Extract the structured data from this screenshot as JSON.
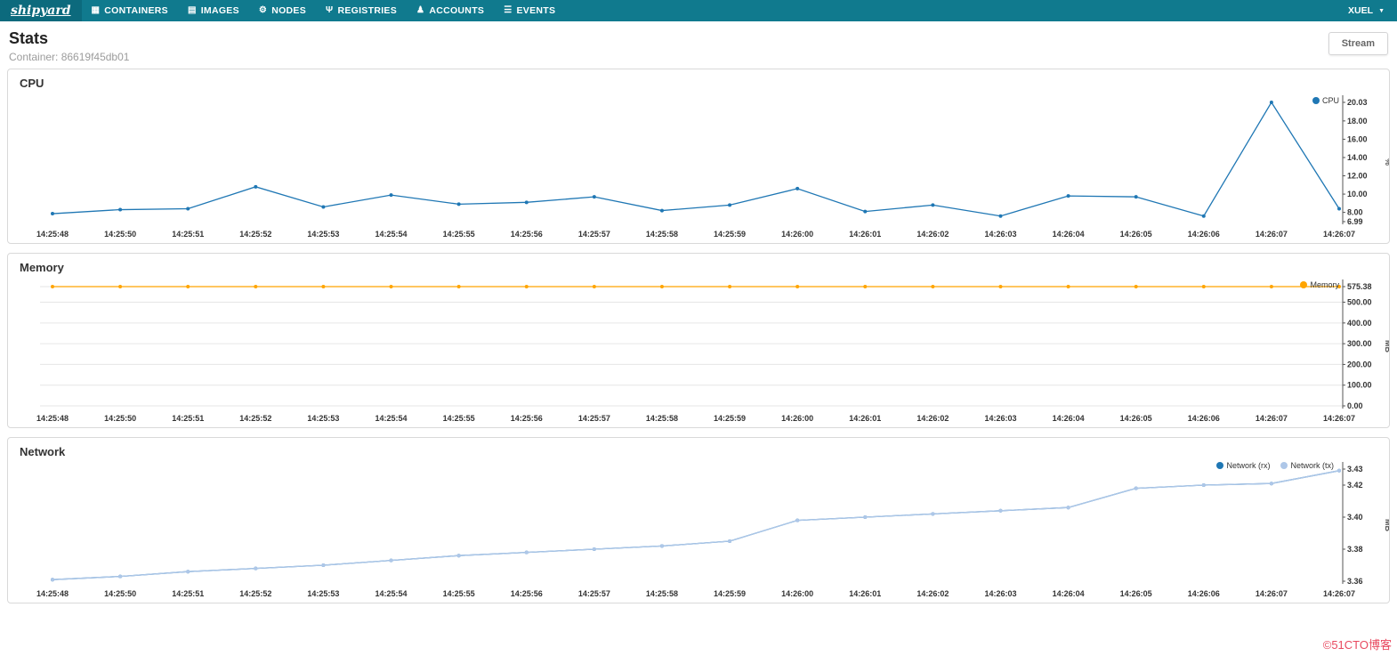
{
  "navbar": {
    "logo": "shipyard",
    "items": [
      {
        "label": "CONTAINERS",
        "icon": "containers-icon",
        "glyph": "▦"
      },
      {
        "label": "IMAGES",
        "icon": "images-icon",
        "glyph": "▤"
      },
      {
        "label": "NODES",
        "icon": "nodes-icon",
        "glyph": "⚙"
      },
      {
        "label": "REGISTRIES",
        "icon": "registries-icon",
        "glyph": "Ψ"
      },
      {
        "label": "ACCOUNTS",
        "icon": "accounts-icon",
        "glyph": "♟"
      },
      {
        "label": "EVENTS",
        "icon": "events-icon",
        "glyph": "☰"
      }
    ],
    "user": "XUEL"
  },
  "header": {
    "title": "Stats",
    "subtitle": "Container: 86619f45db01",
    "stream_button": "Stream"
  },
  "watermark": "©51CTO博客",
  "colors": {
    "navbar": "#107a8e",
    "cpu_line": "#1f77b4",
    "memory_line": "#ffa500",
    "network_rx": "#1f77b4",
    "network_tx": "#aec7e8",
    "watermark": "#e8495f"
  },
  "chart_data": [
    {
      "type": "line",
      "title": "CPU",
      "ylabel": "%",
      "ylim": [
        6.99,
        20.03
      ],
      "yticks": [
        6.99,
        8,
        10,
        12,
        14,
        16,
        18,
        20.03
      ],
      "ytick_labels": [
        "6.99",
        "8.00",
        "10.00",
        "12.00",
        "14.00",
        "16.00",
        "18.00",
        "20.03"
      ],
      "grid": false,
      "legend_position": "top-right",
      "categories": [
        "14:25:48",
        "14:25:50",
        "14:25:51",
        "14:25:52",
        "14:25:53",
        "14:25:54",
        "14:25:55",
        "14:25:56",
        "14:25:57",
        "14:25:58",
        "14:25:59",
        "14:26:00",
        "14:26:01",
        "14:26:02",
        "14:26:03",
        "14:26:04",
        "14:26:05",
        "14:26:06",
        "14:26:07",
        "14:26:07"
      ],
      "series": [
        {
          "name": "CPU",
          "color": "#1f77b4",
          "values": [
            7.86,
            8.3,
            8.4,
            10.8,
            8.6,
            9.9,
            8.9,
            9.1,
            9.7,
            8.2,
            8.8,
            10.6,
            8.1,
            8.8,
            7.6,
            9.8,
            9.7,
            7.6,
            20.03,
            8.4
          ]
        }
      ]
    },
    {
      "type": "line",
      "title": "Memory",
      "ylabel": "MB",
      "ylim": [
        0,
        575.38
      ],
      "yticks": [
        0,
        100,
        200,
        300,
        400,
        500,
        575.38
      ],
      "ytick_labels": [
        "0.00",
        "100.00",
        "200.00",
        "300.00",
        "400.00",
        "500.00",
        "575.38"
      ],
      "grid": true,
      "legend_position": "top-right",
      "categories": [
        "14:25:48",
        "14:25:50",
        "14:25:51",
        "14:25:52",
        "14:25:53",
        "14:25:54",
        "14:25:55",
        "14:25:56",
        "14:25:57",
        "14:25:58",
        "14:25:59",
        "14:26:00",
        "14:26:01",
        "14:26:02",
        "14:26:03",
        "14:26:04",
        "14:26:05",
        "14:26:06",
        "14:26:07",
        "14:26:07"
      ],
      "series": [
        {
          "name": "Memory",
          "color": "#ffa500",
          "values": [
            575.38,
            575.38,
            575.38,
            575.38,
            575.38,
            575.38,
            575.38,
            575.38,
            575.38,
            575.38,
            575.38,
            575.38,
            575.38,
            575.38,
            575.38,
            575.38,
            575.38,
            575.38,
            575.38,
            575.38
          ]
        }
      ]
    },
    {
      "type": "line",
      "title": "Network",
      "ylabel": "MB",
      "ylim": [
        3.36,
        3.43
      ],
      "yticks": [
        3.36,
        3.38,
        3.4,
        3.42,
        3.43
      ],
      "ytick_labels": [
        "3.36",
        "3.38",
        "3.40",
        "3.42",
        "3.43"
      ],
      "grid": false,
      "legend_position": "top-right",
      "categories": [
        "14:25:48",
        "14:25:50",
        "14:25:51",
        "14:25:52",
        "14:25:53",
        "14:25:54",
        "14:25:55",
        "14:25:56",
        "14:25:57",
        "14:25:58",
        "14:25:59",
        "14:26:00",
        "14:26:01",
        "14:26:02",
        "14:26:03",
        "14:26:04",
        "14:26:05",
        "14:26:06",
        "14:26:07",
        "14:26:07"
      ],
      "series": [
        {
          "name": "Network (rx)",
          "color": "#1f77b4",
          "values": [
            3.361,
            3.363,
            3.366,
            3.368,
            3.37,
            3.373,
            3.376,
            3.378,
            3.38,
            3.382,
            3.385,
            3.398,
            3.4,
            3.402,
            3.404,
            3.406,
            3.418,
            3.42,
            3.421,
            3.429
          ]
        },
        {
          "name": "Network (tx)",
          "color": "#aec7e8",
          "values": [
            3.361,
            3.363,
            3.366,
            3.368,
            3.37,
            3.373,
            3.376,
            3.378,
            3.38,
            3.382,
            3.385,
            3.398,
            3.4,
            3.402,
            3.404,
            3.406,
            3.418,
            3.42,
            3.421,
            3.429
          ]
        }
      ]
    }
  ]
}
